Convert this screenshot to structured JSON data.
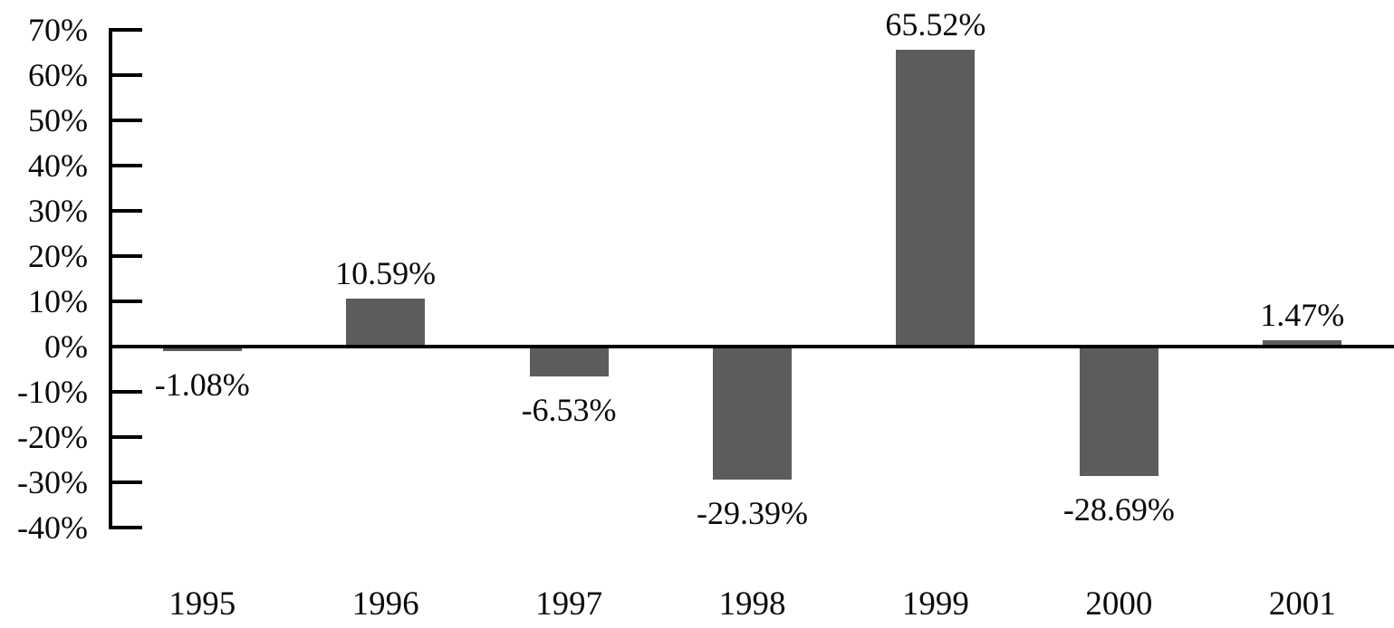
{
  "chart_data": {
    "type": "bar",
    "categories": [
      "1995",
      "1996",
      "1997",
      "1998",
      "1999",
      "2000",
      "2001"
    ],
    "values": [
      -1.08,
      10.59,
      -6.53,
      -29.39,
      65.52,
      -28.69,
      1.47
    ],
    "value_labels": [
      "-1.08%",
      "10.59%",
      "-6.53%",
      "-29.39%",
      "65.52%",
      "-28.69%",
      "1.47%"
    ],
    "yticks": [
      {
        "value": 70,
        "label": "70%"
      },
      {
        "value": 60,
        "label": "60%"
      },
      {
        "value": 50,
        "label": "50%"
      },
      {
        "value": 40,
        "label": "40%"
      },
      {
        "value": 30,
        "label": "30%"
      },
      {
        "value": 20,
        "label": "20%"
      },
      {
        "value": 10,
        "label": "10%"
      },
      {
        "value": 0,
        "label": "0%"
      },
      {
        "value": -10,
        "label": "-10%"
      },
      {
        "value": -20,
        "label": "-20%"
      },
      {
        "value": -30,
        "label": "-30%"
      },
      {
        "value": -40,
        "label": "-40%"
      }
    ],
    "ylim": [
      -40,
      70
    ],
    "grid": false,
    "legend_position": "none",
    "data_label_position": "outside-end",
    "bar_color": "#5c5c5c",
    "axis_color": "#000000",
    "text_color": "#0a0a0a",
    "background_color": "#ffffff"
  }
}
